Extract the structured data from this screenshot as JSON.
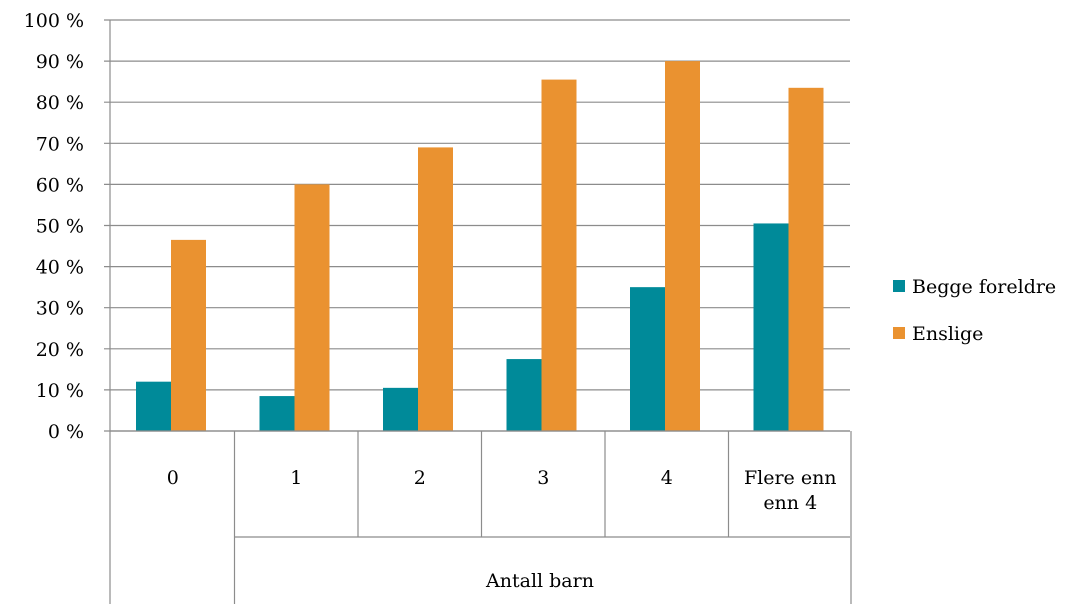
{
  "chart_data": {
    "type": "bar",
    "categories": [
      "0",
      "1",
      "2",
      "3",
      "4",
      "Flere enn enn 4"
    ],
    "category_lines": [
      [
        "0"
      ],
      [
        "1"
      ],
      [
        "2"
      ],
      [
        "3"
      ],
      [
        "4"
      ],
      [
        "Flere enn",
        "enn 4"
      ]
    ],
    "series": [
      {
        "name": "Begge foreldre",
        "color": "#008a99",
        "values": [
          12,
          8.5,
          10.5,
          17.5,
          35,
          50.5
        ]
      },
      {
        "name": "Enslige",
        "color": "#ea9230",
        "values": [
          46.5,
          60,
          69,
          85.5,
          90,
          83.5
        ]
      }
    ],
    "xlabel": "Antall barn",
    "ylabel": "",
    "ylim": [
      0,
      100
    ],
    "yticks": [
      0,
      10,
      20,
      30,
      40,
      50,
      60,
      70,
      80,
      90,
      100
    ],
    "ytick_labels": [
      "0 %",
      "10 %",
      "20 %",
      "30 %",
      "40 %",
      "50 %",
      "60 %",
      "70 %",
      "80 %",
      "90 %",
      "100 %"
    ],
    "grid": true,
    "legend_position": "right",
    "gridline_color": "#8c8c8c"
  }
}
